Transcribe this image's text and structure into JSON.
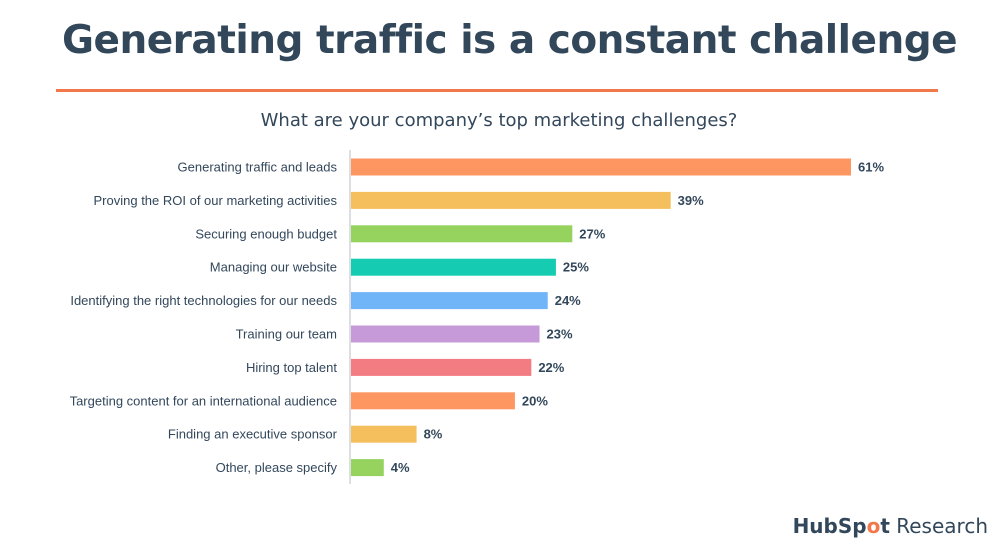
{
  "page": {
    "title": "Generating traffic is a constant challenge",
    "accent_color": "#f2784b"
  },
  "chart_data": {
    "type": "bar",
    "orientation": "horizontal",
    "title": "What are your company’s top marketing challenges?",
    "xlabel": "",
    "ylabel": "",
    "xlim": [
      0,
      61
    ],
    "grid": false,
    "unit": "%",
    "categories": [
      "Generating traffic and leads",
      "Proving the ROI of our marketing activities",
      "Securing enough budget",
      "Managing our website",
      "Identifying the right technologies for our needs",
      "Training our team",
      "Hiring top talent",
      "Targeting content for an international audience",
      "Finding an executive sponsor",
      "Other, please specify"
    ],
    "values": [
      61,
      39,
      27,
      25,
      24,
      23,
      22,
      20,
      8,
      4
    ],
    "data_labels": [
      "61%",
      "39%",
      "27%",
      "25%",
      "24%",
      "23%",
      "22%",
      "20%",
      "8%",
      "4%"
    ],
    "colors": [
      "#fe9661",
      "#f5bf5d",
      "#95d35e",
      "#15ccb2",
      "#6fb5f7",
      "#c69ad8",
      "#f37c82",
      "#fe9661",
      "#f5bf5d",
      "#95d35e"
    ]
  },
  "branding": {
    "hub": "HubSp",
    "o": "o",
    "t": "t",
    "research": "Research"
  }
}
